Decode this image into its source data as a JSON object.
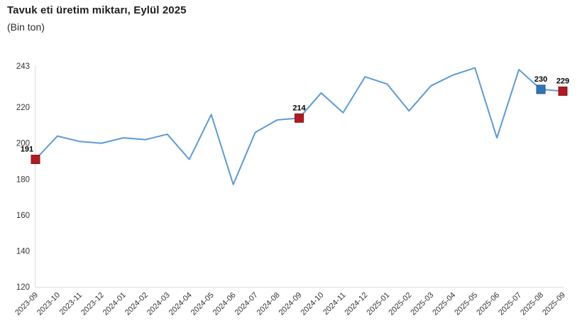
{
  "header": {
    "title": "Tavuk eti üretim miktarı, Eylül 2025",
    "subtitle": "(Bin ton)"
  },
  "chart_data": {
    "type": "line",
    "title": "Tavuk eti üretim miktarı, Eylül 2025",
    "subtitle": "(Bin ton)",
    "unit": "Bin ton",
    "categories": [
      "2023-09",
      "2023-10",
      "2023-11",
      "2023-12",
      "2024-01",
      "2024-02",
      "2024-03",
      "2024-04",
      "2024-05",
      "2024-06",
      "2024-07",
      "2024-08",
      "2024-09",
      "2024-10",
      "2024-11",
      "2024-12",
      "2025-01",
      "2025-02",
      "2025-03",
      "2025-04",
      "2025-05",
      "2025-06",
      "2025-07",
      "2025-08",
      "2025-09"
    ],
    "values": [
      191,
      204,
      201,
      200,
      203,
      202,
      205,
      191,
      216,
      177,
      206,
      213,
      214,
      228,
      217,
      237,
      233,
      218,
      232,
      238,
      242,
      203,
      241,
      230,
      229
    ],
    "highlighted_points": [
      {
        "index": 0,
        "category": "2023-09",
        "value": 191,
        "label": "191",
        "fill": "#b11a21",
        "border": "#8c1318"
      },
      {
        "index": 12,
        "category": "2024-09",
        "value": 214,
        "label": "214",
        "fill": "#b11a21",
        "border": "#8c1318"
      },
      {
        "index": 23,
        "category": "2025-08",
        "value": 230,
        "label": "230",
        "fill": "#2e75b6",
        "border": "#21598c"
      },
      {
        "index": 24,
        "category": "2025-09",
        "value": 229,
        "label": "229",
        "fill": "#b11a21",
        "border": "#8c1318"
      }
    ],
    "yticks": [
      243,
      220,
      200,
      180,
      160,
      140,
      120
    ],
    "ylim": [
      120,
      243
    ],
    "xlabel": "",
    "ylabel": "",
    "grid": false,
    "legend": false,
    "colors": {
      "line": "#5b9bd5",
      "current_month_marker": "#b11a21",
      "previous_month_marker": "#2e75b6",
      "axis_line": "#dcdcdc"
    }
  }
}
